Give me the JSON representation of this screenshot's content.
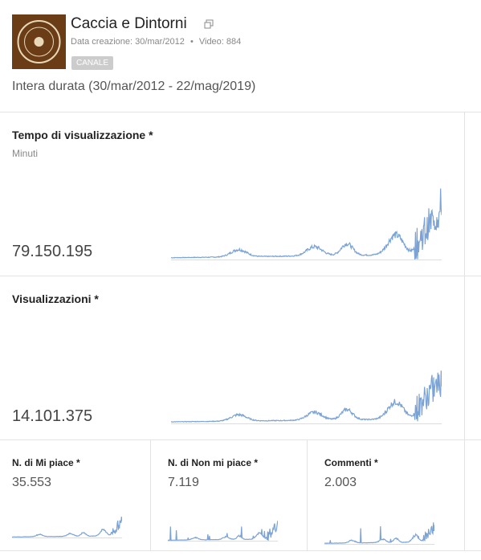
{
  "header": {
    "channel_name": "Caccia e Dintorni",
    "created": "Data creazione: 30/mar/2012",
    "meta_separator": "•",
    "videos": "Video: 884",
    "badge": "CANALE",
    "period": "Intera durata (30/mar/2012 - 22/mag/2019)"
  },
  "cards": [
    {
      "title": "Tempo di visualizzazione *",
      "unit": "Minuti",
      "value": "79.150.195"
    },
    {
      "title": "Visualizzazioni *",
      "value": "14.101.375"
    },
    {
      "title": "N. di Mi piace *",
      "value": "35.553"
    },
    {
      "title": "N. di Non mi piace *",
      "value": "7.119"
    },
    {
      "title": "Commenti *",
      "value": "2.003"
    }
  ]
}
